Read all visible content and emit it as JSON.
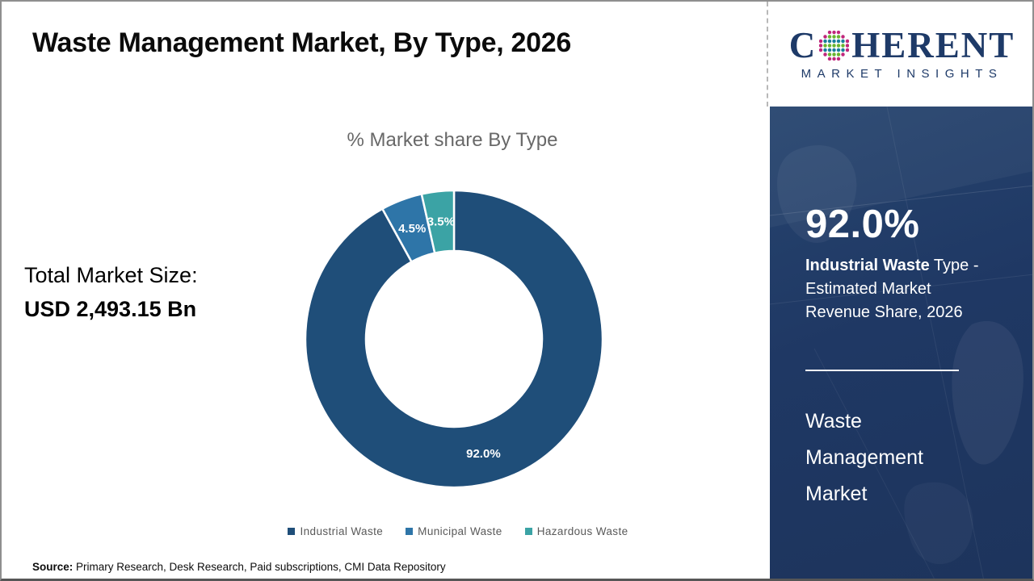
{
  "header": {
    "title": "Waste Management Market, By Type, 2026"
  },
  "logo": {
    "prefix": "C",
    "suffix": "HERENT",
    "subtitle": "MARKET INSIGHTS",
    "text_color": "#1e3a68",
    "globe_colors": {
      "edge_pink": "#c0267b",
      "green": "#69b52f",
      "teal": "#1a7e9b"
    }
  },
  "left_panel": {
    "total_label": "Total Market Size:",
    "total_value": "USD 2,493.15 Bn"
  },
  "chart_data": {
    "type": "pie",
    "donut": true,
    "title": "% Market share By Type",
    "categories": [
      "Industrial Waste",
      "Municipal Waste",
      "Hazardous Waste"
    ],
    "values": [
      92.0,
      4.5,
      3.5
    ],
    "slice_labels": [
      "92.0%",
      "4.5%",
      "3.5%"
    ],
    "colors": [
      "#1f4e79",
      "#2e75a8",
      "#3ba3a5"
    ],
    "start_angle_deg": 0,
    "direction": "clockwise",
    "inner_radius_ratio": 0.59,
    "legend_position": "bottom"
  },
  "sidebar": {
    "background_color": "#1f3864",
    "stat_value": "92.0%",
    "stat_bold": "Industrial Waste",
    "stat_rest": " Type - Estimated Market Revenue Share, 2026",
    "market_name": "Waste Management Market"
  },
  "footer": {
    "source_label": "Source:",
    "source_text": " Primary Research, Desk Research, Paid subscriptions, CMI Data Repository"
  }
}
